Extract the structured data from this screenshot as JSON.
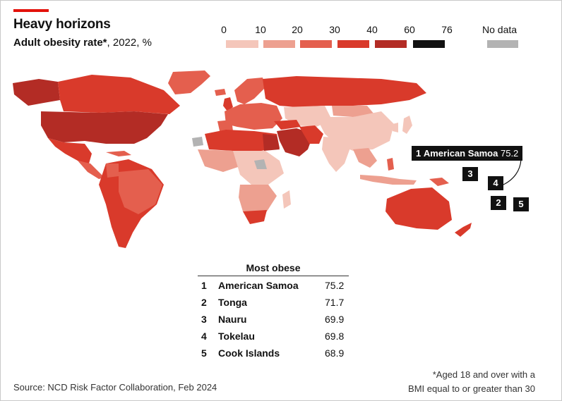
{
  "header": {
    "title": "Heavy horizons",
    "subtitle_main": "Adult obesity rate*",
    "subtitle_rest": ", 2022, %"
  },
  "legend": {
    "ticks": [
      "0",
      "10",
      "20",
      "30",
      "40",
      "60",
      "76"
    ],
    "colors": [
      "#f4c6ba",
      "#eda090",
      "#e45f4e",
      "#d93a2b",
      "#b32c25",
      "#111111"
    ],
    "nodata_label": "No data",
    "nodata_color": "#b3b3b3"
  },
  "map": {
    "callout_rank": "1",
    "callout_name": "American Samoa",
    "callout_value": "75.2",
    "rank_boxes": [
      "3",
      "4",
      "2",
      "5"
    ]
  },
  "table": {
    "title": "Most obese",
    "rows": [
      {
        "rank": "1",
        "name": "American Samoa",
        "value": "75.2"
      },
      {
        "rank": "2",
        "name": "Tonga",
        "value": "71.7"
      },
      {
        "rank": "3",
        "name": "Nauru",
        "value": "69.9"
      },
      {
        "rank": "4",
        "name": "Tokelau",
        "value": "69.8"
      },
      {
        "rank": "5",
        "name": "Cook Islands",
        "value": "68.9"
      }
    ]
  },
  "footer": {
    "source": "Source: NCD Risk Factor Collaboration, Feb 2024",
    "footnote_line1": "*Aged 18 and over with a",
    "footnote_line2": "BMI equal to or greater than 30"
  }
}
